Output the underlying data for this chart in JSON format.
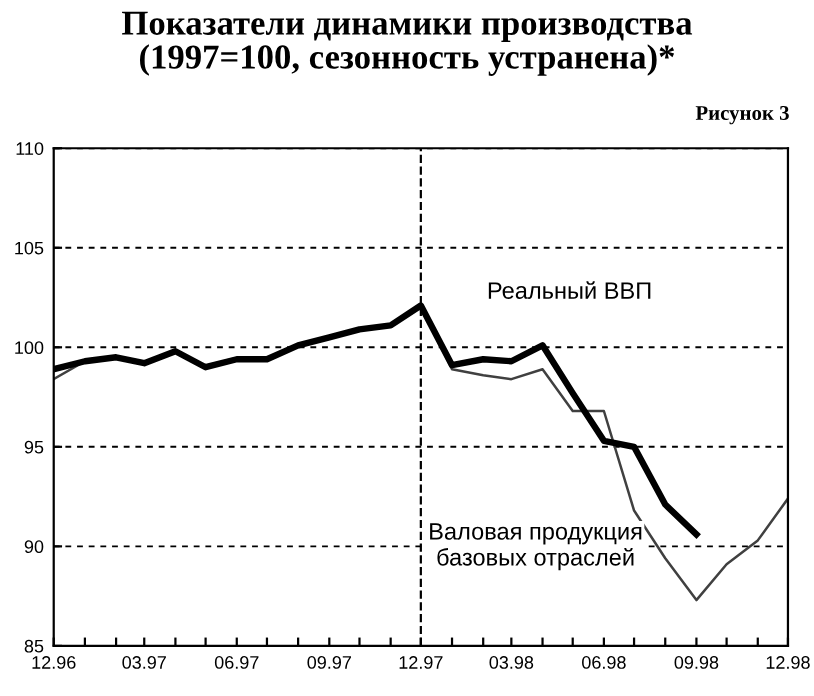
{
  "chart_data": {
    "type": "line",
    "title": "Показатели динамики производства\n(1997=100, сезонность устранена)*",
    "annotations": [
      "Рисунок 3"
    ],
    "x": [
      "1996-12",
      "1997-01",
      "1997-02",
      "1997-03",
      "1997-04",
      "1997-05",
      "1997-06",
      "1997-07",
      "1997-08",
      "1997-09",
      "1997-10",
      "1997-11",
      "1997-12",
      "1998-01",
      "1998-02",
      "1998-03",
      "1998-04",
      "1998-05",
      "1998-06",
      "1998-07",
      "1998-08",
      "1998-09",
      "1998-10",
      "1998-11",
      "1998-12"
    ],
    "series": [
      {
        "name": "Реальный ВВП",
        "color": "#000000",
        "values": [
          98.9,
          99.3,
          99.5,
          99.2,
          99.8,
          99.0,
          99.4,
          99.4,
          100.1,
          100.5,
          100.9,
          101.1,
          102.1,
          99.1,
          99.4,
          99.3,
          100.1,
          97.7,
          95.3,
          95.0,
          92.1,
          90.6,
          null,
          null,
          null
        ]
      },
      {
        "name": "Валовая продукция\nбазовых отраслей",
        "color": "#404040",
        "values": [
          98.4,
          99.3,
          99.5,
          99.2,
          99.8,
          99.0,
          99.4,
          99.4,
          100.1,
          100.5,
          100.9,
          101.1,
          102.1,
          98.9,
          98.6,
          98.4,
          98.9,
          96.8,
          96.8,
          91.8,
          89.4,
          87.3,
          89.1,
          90.3,
          92.4
        ]
      }
    ],
    "xlim": [
      "1996-12",
      "1998-12"
    ],
    "xticks": [
      {
        "value": "1996-12",
        "label": "12.96"
      },
      {
        "value": "1997-01",
        "label": null
      },
      {
        "value": "1997-02",
        "label": null
      },
      {
        "value": "1997-03",
        "label": "03.97"
      },
      {
        "value": "1997-04",
        "label": null
      },
      {
        "value": "1997-05",
        "label": null
      },
      {
        "value": "1997-06",
        "label": "06.97"
      },
      {
        "value": "1997-07",
        "label": null
      },
      {
        "value": "1997-08",
        "label": null
      },
      {
        "value": "1997-09",
        "label": "09.97"
      },
      {
        "value": "1997-10",
        "label": null
      },
      {
        "value": "1997-11",
        "label": null
      },
      {
        "value": "1997-12",
        "label": "12.97"
      },
      {
        "value": "1998-01",
        "label": null
      },
      {
        "value": "1998-02",
        "label": null
      },
      {
        "value": "1998-03",
        "label": "03.98"
      },
      {
        "value": "1998-04",
        "label": null
      },
      {
        "value": "1998-05",
        "label": null
      },
      {
        "value": "1998-06",
        "label": "06.98"
      },
      {
        "value": "1998-07",
        "label": null
      },
      {
        "value": "1998-08",
        "label": null
      },
      {
        "value": "1998-09",
        "label": "09.98"
      },
      {
        "value": "1998-10",
        "label": null
      },
      {
        "value": "1998-11",
        "label": null
      },
      {
        "value": "1998-12",
        "label": "12.98"
      }
    ],
    "ylim": [
      85,
      110
    ],
    "yticks": [
      85,
      90,
      95,
      100,
      105,
      110
    ],
    "grid": "y",
    "ref_lines": [
      {
        "axis": "x",
        "value": "1997-12",
        "label": null,
        "color": "#000000",
        "line_style": "dashed"
      }
    ],
    "legend": false,
    "marker": "none",
    "line_style": "solid"
  }
}
